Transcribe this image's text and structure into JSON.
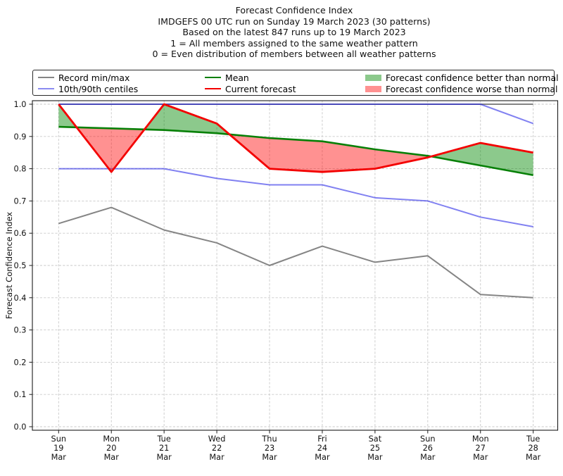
{
  "title": {
    "lines": [
      "Forecast Confidence Index",
      "IMDGEFS 00 UTC run on Sunday 19 March 2023 (30 patterns)",
      "Based on the latest 847 runs up to 19 March 2023",
      "1 = All members assigned to the same weather pattern",
      "0 = Even distribution of members between all weather patterns"
    ]
  },
  "legend": {
    "items": [
      {
        "label": "Record min/max",
        "sample": "line",
        "color": "#858585"
      },
      {
        "label": "10th/90th centiles",
        "sample": "line",
        "color": "#8b8bf1"
      },
      {
        "label": "Mean",
        "sample": "line",
        "color": "#078007"
      },
      {
        "label": "Current forecast",
        "sample": "line",
        "color": "#f30000"
      },
      {
        "label": "Forecast confidence better than normal",
        "sample": "patch",
        "color": "#8cc98c"
      },
      {
        "label": "Forecast confidence worse than normal",
        "sample": "patch",
        "color": "#ff9191"
      }
    ]
  },
  "chart_data": {
    "type": "line",
    "title": "Forecast Confidence Index",
    "ylabel": "Forecast Confidence Index",
    "ylim": [
      0.0,
      1.0
    ],
    "ytick_labels": [
      "0.0",
      "0.1",
      "0.2",
      "0.3",
      "0.4",
      "0.5",
      "0.6",
      "0.7",
      "0.8",
      "0.9",
      "1.0"
    ],
    "grid": true,
    "legend_position": "top",
    "categories": [
      "Sun 19 Mar",
      "Mon 20 Mar",
      "Tue 21 Mar",
      "Wed 22 Mar",
      "Thu 23 Mar",
      "Fri 24 Mar",
      "Sat 25 Mar",
      "Sun 26 Mar",
      "Mon 27 Mar",
      "Tue 28 Mar"
    ],
    "series": [
      {
        "name": "Record max",
        "legend": "Record min/max",
        "color": "#858585",
        "width": 2.0,
        "values": [
          1.0,
          1.0,
          1.0,
          1.0,
          1.0,
          1.0,
          1.0,
          1.0,
          1.0,
          1.0
        ]
      },
      {
        "name": "Record min",
        "legend": "Record min/max",
        "color": "#858585",
        "width": 2.0,
        "values": [
          0.63,
          0.68,
          0.61,
          0.57,
          0.5,
          0.56,
          0.51,
          0.53,
          0.41,
          0.4
        ]
      },
      {
        "name": "90th centile",
        "legend": "10th/90th centiles",
        "color": "rgba(25,25,230,0.55)",
        "width": 2.0,
        "values": [
          1.0,
          1.0,
          1.0,
          1.0,
          1.0,
          1.0,
          1.0,
          1.0,
          1.0,
          0.94
        ]
      },
      {
        "name": "10th centile",
        "legend": "10th/90th centiles",
        "color": "rgba(25,25,230,0.55)",
        "width": 2.0,
        "values": [
          0.8,
          0.8,
          0.8,
          0.77,
          0.75,
          0.75,
          0.71,
          0.7,
          0.65,
          0.62
        ]
      },
      {
        "name": "Mean",
        "legend": "Mean",
        "color": "#078007",
        "width": 2.6,
        "values": [
          0.93,
          0.925,
          0.92,
          0.91,
          0.895,
          0.885,
          0.86,
          0.84,
          0.81,
          0.78
        ]
      },
      {
        "name": "Current forecast",
        "legend": "Current forecast",
        "color": "#f30000",
        "width": 2.8,
        "values": [
          1.0,
          0.79,
          1.0,
          0.94,
          0.8,
          0.79,
          0.8,
          0.835,
          0.88,
          0.85
        ]
      }
    ],
    "fill_between": {
      "upper_series": "Current forecast",
      "lower_series": "Mean",
      "better_label": "Forecast confidence better than normal",
      "better_color": "rgba(0,135,0,0.45)",
      "worse_label": "Forecast confidence worse than normal",
      "worse_color": "rgba(255,10,10,0.45)"
    }
  }
}
